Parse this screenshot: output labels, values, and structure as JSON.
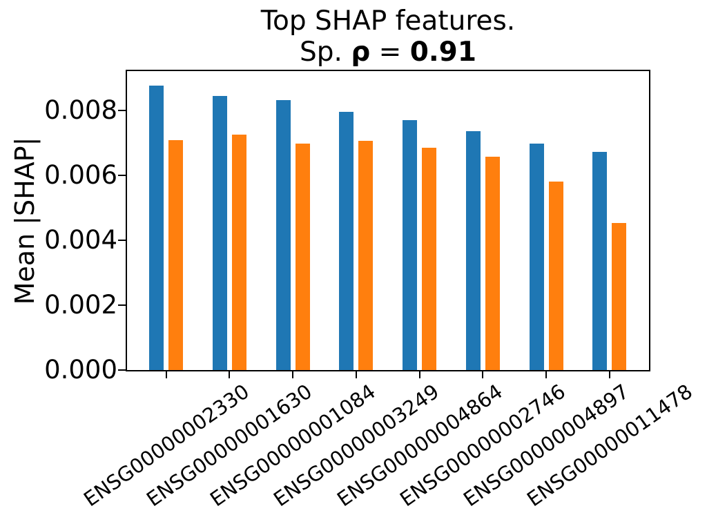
{
  "figure": {
    "title_line1": "Top SHAP features.",
    "title_line2": {
      "prefix": "Sp. ",
      "rho": "ρ",
      "equals": " = ",
      "value": "0.91"
    },
    "ylabel": "Mean |SHAP|"
  },
  "chart_data": {
    "type": "bar",
    "title": "Top SHAP features. Sp. ρ = 0.91",
    "xlabel": "",
    "ylabel": "Mean |SHAP|",
    "categories": [
      "ENSG00000002330",
      "ENSG00000001630",
      "ENSG00000001084",
      "ENSG00000003249",
      "ENSG00000004864",
      "ENSG00000002746",
      "ENSG00000004897",
      "ENSG00000011478"
    ],
    "series": [
      {
        "name": "blue",
        "color": "#1f77b4",
        "values": [
          0.00878,
          0.00846,
          0.00833,
          0.00797,
          0.00772,
          0.00738,
          0.00699,
          0.00673
        ]
      },
      {
        "name": "orange",
        "color": "#ff7f0e",
        "values": [
          0.0071,
          0.00727,
          0.00698,
          0.00708,
          0.00686,
          0.00658,
          0.00582,
          0.00453
        ]
      }
    ],
    "ylim": [
      0,
      0.009225
    ],
    "ytick_values": [
      0,
      0.002,
      0.004,
      0.006,
      0.008
    ],
    "ytick_labels": [
      "0.000",
      "0.002",
      "0.004",
      "0.006",
      "0.008"
    ],
    "xtick_rotation_deg": 35,
    "grid": false,
    "legend": "none"
  }
}
